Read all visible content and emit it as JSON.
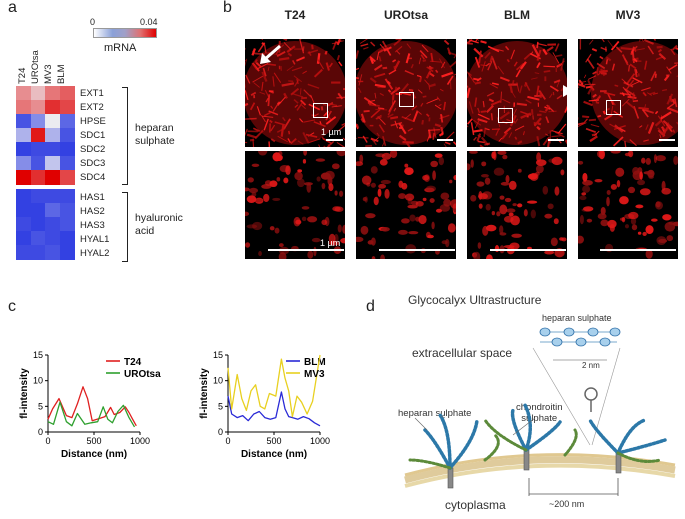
{
  "panels": {
    "a": "a",
    "b": "b",
    "c": "c",
    "d": "d"
  },
  "heatmap": {
    "scale_min": "0",
    "scale_max": "0.04",
    "scale_label": "mRNA",
    "columns": [
      "T24",
      "UROtsa",
      "MV3",
      "BLM"
    ],
    "genes": [
      "EXT1",
      "EXT2",
      "HPSE",
      "SDC1",
      "SDC2",
      "SDC3",
      "SDC4",
      "HAS1",
      "HAS2",
      "HAS3",
      "HYAL1",
      "HYAL2"
    ],
    "groups": [
      {
        "lines": [
          "heparan",
          "sulphate"
        ]
      },
      {
        "lines": [
          "hyaluronic",
          "acid"
        ]
      }
    ],
    "values": [
      [
        0.028,
        0.024,
        0.03,
        0.032
      ],
      [
        0.03,
        0.028,
        0.036,
        0.034
      ],
      [
        0.004,
        0.01,
        0.02,
        0.006
      ],
      [
        0.014,
        0.038,
        0.014,
        0.004
      ],
      [
        0.002,
        0.003,
        0.003,
        0.002
      ],
      [
        0.01,
        0.004,
        0.016,
        0.004
      ],
      [
        0.04,
        0.036,
        0.04,
        0.034
      ],
      [
        0.002,
        0.003,
        0.003,
        0.003
      ],
      [
        0.002,
        0.002,
        0.006,
        0.004
      ],
      [
        0.003,
        0.002,
        0.003,
        0.004
      ],
      [
        0.002,
        0.004,
        0.003,
        0.002
      ],
      [
        0.003,
        0.003,
        0.004,
        0.002
      ]
    ]
  },
  "microscopy": {
    "titles": [
      "T24",
      "UROtsa",
      "BLM",
      "MV3"
    ],
    "scale_top": "1 µm",
    "scale_bottom": "1 µm"
  },
  "chart_data": [
    {
      "type": "line",
      "xlabel": "Distance (nm)",
      "ylabel": "fl-intensity",
      "xlim": [
        0,
        1000
      ],
      "ylim": [
        0,
        15
      ],
      "xticks": [
        "0",
        "500",
        "1000"
      ],
      "yticks": [
        "0",
        "5",
        "10",
        "15"
      ],
      "series": [
        {
          "name": "T24",
          "color": "#e02020",
          "x": [
            0,
            50,
            120,
            200,
            260,
            320,
            380,
            430,
            480,
            550,
            620,
            680,
            720,
            780,
            840,
            880,
            920,
            960
          ],
          "y": [
            2.5,
            4.5,
            6.5,
            3.2,
            2.8,
            5.5,
            8.8,
            6.5,
            2.2,
            2.6,
            3.0,
            4.8,
            3.4,
            3.8,
            4.9,
            3.8,
            2.5,
            1.2
          ]
        },
        {
          "name": "UROtsa",
          "color": "#2ea02e",
          "x": [
            0,
            60,
            130,
            200,
            260,
            320,
            400,
            470,
            540,
            600,
            650,
            700,
            760,
            820,
            880,
            940
          ],
          "y": [
            2.0,
            1.5,
            5.8,
            2.0,
            1.2,
            3.6,
            1.5,
            1.8,
            2.0,
            4.9,
            2.5,
            1.8,
            4.0,
            5.2,
            2.8,
            1.0
          ]
        }
      ],
      "legend": "top-right"
    },
    {
      "type": "line",
      "xlabel": "Distance (nm)",
      "ylabel": "fl-intensity",
      "xlim": [
        0,
        1000
      ],
      "ylim": [
        0,
        15
      ],
      "xticks": [
        "0",
        "500",
        "1000"
      ],
      "yticks": [
        "0",
        "5",
        "10",
        "15"
      ],
      "series": [
        {
          "name": "BLM",
          "color": "#2a2ad6",
          "x": [
            0,
            40,
            100,
            160,
            220,
            280,
            340,
            400,
            460,
            520,
            580,
            620,
            660,
            700,
            760,
            820,
            880,
            940,
            1000
          ],
          "y": [
            7.0,
            3.5,
            2.8,
            3.2,
            2.2,
            3.5,
            4.0,
            2.8,
            2.5,
            2.8,
            7.8,
            4.5,
            3.0,
            2.8,
            2.5,
            3.0,
            2.6,
            1.8,
            1.2
          ]
        },
        {
          "name": "MV3",
          "color": "#e8d020",
          "x": [
            0,
            40,
            100,
            150,
            200,
            250,
            300,
            350,
            400,
            450,
            520,
            580,
            620,
            660,
            700,
            750,
            800,
            860,
            920,
            1000
          ],
          "y": [
            12.5,
            4.5,
            11.2,
            6.5,
            4.2,
            8.0,
            9.2,
            5.0,
            4.5,
            7.5,
            7.0,
            14.2,
            10.5,
            8.0,
            3.0,
            7.0,
            5.8,
            3.5,
            6.0,
            15.0
          ]
        }
      ],
      "legend": "top-right"
    }
  ],
  "schematic": {
    "title": "Glycocalyx Ultrastructure",
    "extracellular": "extracellular space",
    "hs_left": "heparan sulphate",
    "hs_top": "heparan sulphate",
    "cs": [
      "chondroitin",
      "sulphate"
    ],
    "inset_scale": "2 nm",
    "cytoplasma": "cytoplasma",
    "spacing": "~200 nm"
  }
}
